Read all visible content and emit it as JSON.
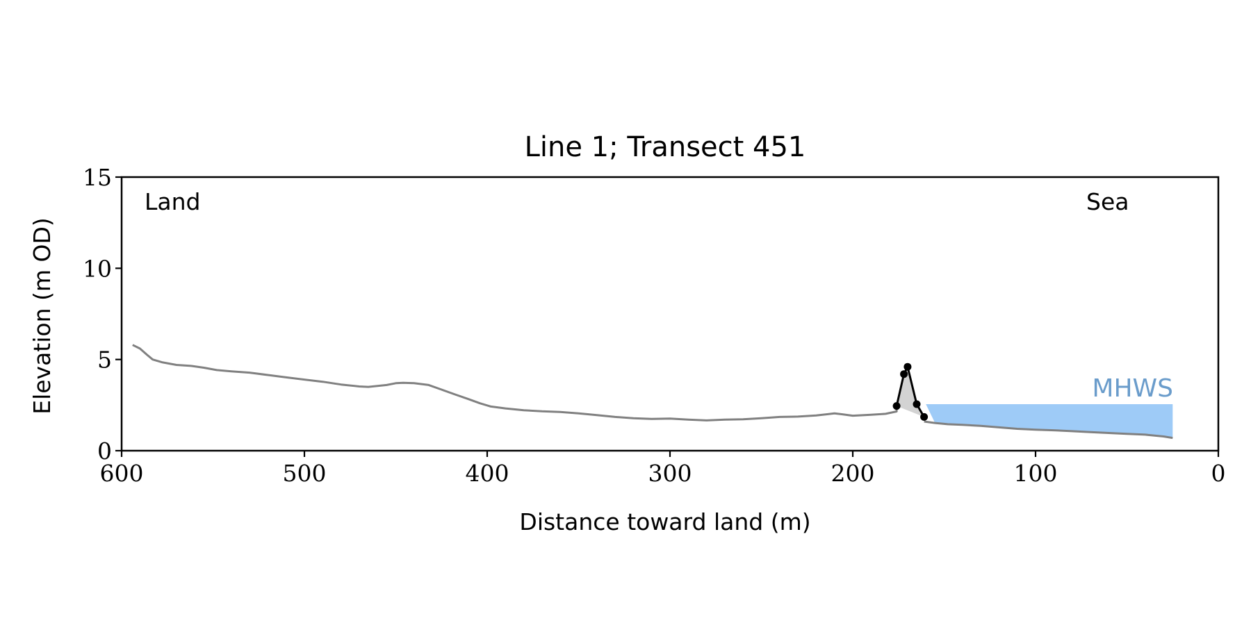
{
  "chart_data": {
    "type": "line",
    "title": "Line 1; Transect 451",
    "xlabel": "Distance toward land (m)",
    "ylabel": "Elevation (m OD)",
    "xlim": [
      600,
      0
    ],
    "ylim": [
      0,
      15
    ],
    "x_reversed": true,
    "xticks": [
      600,
      500,
      400,
      300,
      200,
      100,
      0
    ],
    "yticks": [
      0,
      5,
      10,
      15
    ],
    "grid": false,
    "annotations": {
      "land": "Land",
      "sea": "Sea",
      "mhws": "MHWS"
    },
    "colors": {
      "profile": "#808080",
      "dune": "#000000",
      "dune_fill": "#d3d3d3",
      "mhws_fill": "#9ecbf7",
      "mhws_label": "#6a9ccb"
    },
    "profile": {
      "x": [
        594,
        590,
        586,
        583,
        578,
        570,
        562,
        555,
        548,
        540,
        530,
        520,
        510,
        500,
        490,
        480,
        470,
        465,
        460,
        455,
        450,
        446,
        440,
        432,
        425,
        418,
        410,
        404,
        398,
        390,
        380,
        370,
        360,
        350,
        340,
        330,
        320,
        310,
        300,
        290,
        280,
        270,
        260,
        250,
        240,
        230,
        220,
        214,
        210,
        206,
        200,
        190,
        182,
        176
      ],
      "y": [
        5.8,
        5.6,
        5.25,
        5.0,
        4.85,
        4.7,
        4.65,
        4.55,
        4.42,
        4.35,
        4.28,
        4.15,
        4.02,
        3.9,
        3.78,
        3.63,
        3.52,
        3.5,
        3.55,
        3.6,
        3.7,
        3.72,
        3.7,
        3.6,
        3.35,
        3.1,
        2.82,
        2.6,
        2.42,
        2.32,
        2.22,
        2.16,
        2.12,
        2.05,
        1.95,
        1.85,
        1.78,
        1.74,
        1.76,
        1.7,
        1.66,
        1.7,
        1.72,
        1.78,
        1.85,
        1.87,
        1.93,
        2.0,
        2.05,
        2.0,
        1.92,
        1.97,
        2.02,
        2.15
      ]
    },
    "dune": {
      "x": [
        176,
        172,
        170,
        165,
        161
      ],
      "y": [
        2.45,
        4.2,
        4.6,
        2.55,
        1.85
      ]
    },
    "nearshore": {
      "x": [
        161,
        155,
        148,
        140,
        130,
        120,
        110,
        100,
        90,
        80,
        70,
        60,
        50,
        40,
        30,
        25
      ],
      "y": [
        1.6,
        1.52,
        1.45,
        1.42,
        1.36,
        1.28,
        1.2,
        1.15,
        1.12,
        1.07,
        1.02,
        0.97,
        0.92,
        0.88,
        0.78,
        0.7
      ]
    },
    "mhws": {
      "level": 2.55,
      "x_start": 160,
      "x_end": 25
    }
  }
}
